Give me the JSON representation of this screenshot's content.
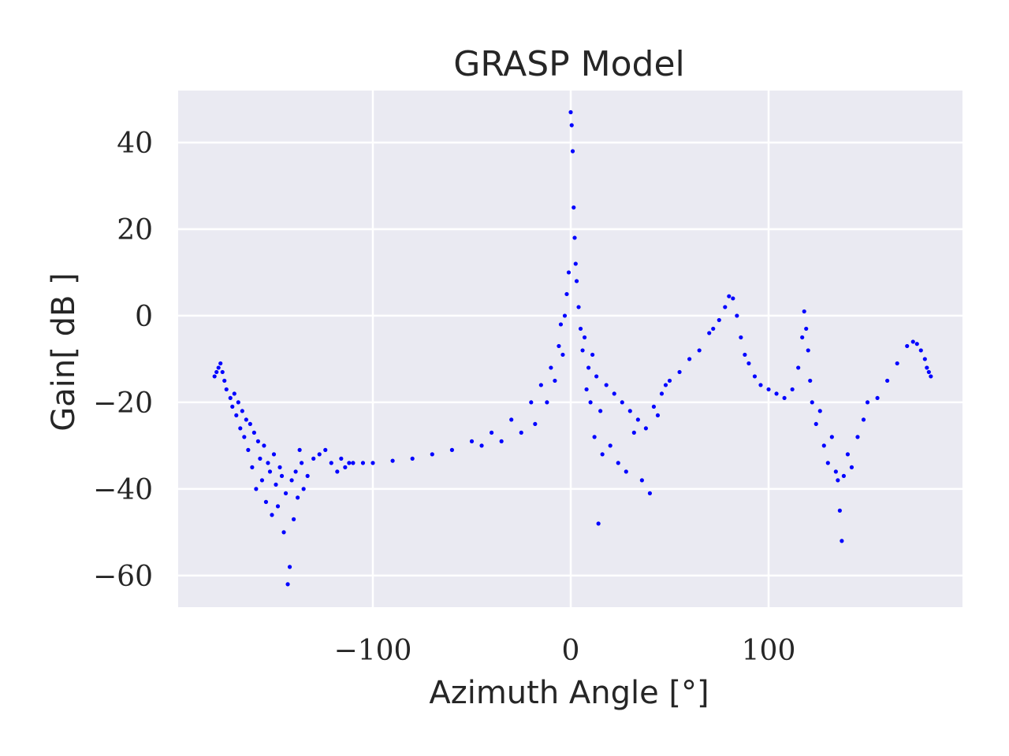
{
  "chart_data": {
    "type": "scatter",
    "title": "GRASP Model",
    "xlabel": "Azimuth Angle [°]",
    "ylabel": "Gain[ dB ]",
    "color": "#0000ff",
    "grid": true,
    "xlim": [
      -198.4,
      198
    ],
    "ylim": [
      -67.3,
      52
    ],
    "xticks": [
      {
        "value": -100,
        "label": "−100"
      },
      0,
      100
    ],
    "yticks": [
      {
        "value": -60,
        "label": "−60"
      },
      {
        "value": -40,
        "label": "−40"
      },
      {
        "value": -20,
        "label": "−20"
      },
      0,
      20,
      40
    ],
    "x": [
      -180,
      -179,
      -178,
      -177,
      -176,
      -175,
      -174,
      -172,
      -171,
      -170,
      -169,
      -168,
      -167,
      -166,
      -165,
      -164,
      -163,
      -162,
      -161,
      -160,
      -159,
      -158,
      -157,
      -156,
      -155,
      -154,
      -153,
      -152,
      -151,
      -150,
      -149,
      -148,
      -147,
      -146,
      -145,
      -144,
      -143,
      -142,
      -141,
      -140,
      -139,
      -138,
      -137,
      -136,
      -135,
      -133,
      -130,
      -127,
      -124,
      -121,
      -118,
      -116,
      -114,
      -112,
      -110,
      -105,
      -100,
      -90,
      -80,
      -70,
      -60,
      -50,
      -45,
      -40,
      -35,
      -30,
      -25,
      -20,
      -18,
      -15,
      -12,
      -10,
      -8,
      -6,
      -5,
      -4,
      -3,
      -2,
      -1,
      0,
      0.5,
      1,
      1.5,
      2,
      2.5,
      3,
      4,
      5,
      6,
      7,
      8,
      9,
      10,
      11,
      12,
      13,
      14,
      15,
      16,
      18,
      20,
      22,
      24,
      26,
      28,
      30,
      32,
      34,
      36,
      38,
      40,
      42,
      44,
      46,
      48,
      50,
      55,
      60,
      65,
      70,
      72,
      75,
      78,
      80,
      82,
      84,
      86,
      88,
      90,
      93,
      96,
      100,
      104,
      108,
      112,
      115,
      117,
      118,
      119,
      120,
      121,
      122,
      124,
      126,
      128,
      130,
      132,
      134,
      135,
      136,
      137,
      138,
      140,
      142,
      145,
      148,
      150,
      155,
      160,
      165,
      170,
      173,
      175,
      177,
      179,
      180,
      181,
      182
    ],
    "values": [
      -14,
      -13,
      -12,
      -11,
      -13,
      -15,
      -17,
      -19,
      -21,
      -18,
      -23,
      -20,
      -26,
      -22,
      -28,
      -24,
      -31,
      -25,
      -35,
      -27,
      -40,
      -29,
      -33,
      -38,
      -30,
      -43,
      -34,
      -36,
      -46,
      -32,
      -39,
      -44,
      -35,
      -37,
      -50,
      -41,
      -62,
      -58,
      -38,
      -47,
      -36,
      -42,
      -31,
      -34,
      -40,
      -37,
      -33,
      -32,
      -31,
      -34,
      -36,
      -33,
      -35,
      -34,
      -34,
      -34,
      -34,
      -33.5,
      -33,
      -32,
      -31,
      -29,
      -30,
      -27,
      -29,
      -24,
      -27,
      -20,
      -25,
      -16,
      -20,
      -12,
      -15,
      -7,
      -2,
      -9,
      0,
      5,
      10,
      47,
      44,
      38,
      25,
      18,
      12,
      8,
      2,
      -3,
      -8,
      -5,
      -17,
      -12,
      -20,
      -9,
      -28,
      -14,
      -48,
      -22,
      -32,
      -16,
      -30,
      -18,
      -34,
      -20,
      -36,
      -22,
      -27,
      -24,
      -38,
      -26,
      -41,
      -21,
      -23,
      -18,
      -16,
      -15,
      -13,
      -10,
      -8,
      -4,
      -3,
      -1,
      2,
      4.5,
      4,
      0,
      -5,
      -9,
      -11,
      -14,
      -16,
      -17,
      -18,
      -19,
      -17,
      -12,
      -5,
      1,
      -3,
      -8,
      -15,
      -20,
      -25,
      -22,
      -30,
      -34,
      -28,
      -36,
      -38,
      -45,
      -52,
      -37,
      -32,
      -35,
      -28,
      -24,
      -20,
      -19,
      -15,
      -11,
      -7,
      -6,
      -6.5,
      -8,
      -10,
      -12,
      -13,
      -14
    ]
  }
}
